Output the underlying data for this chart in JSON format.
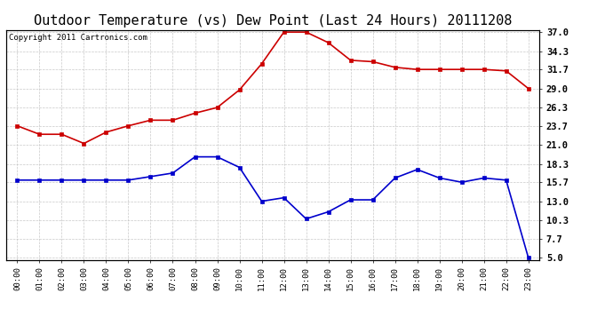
{
  "title": "Outdoor Temperature (vs) Dew Point (Last 24 Hours) 20111208",
  "copyright": "Copyright 2011 Cartronics.com",
  "x_labels": [
    "00:00",
    "01:00",
    "02:00",
    "03:00",
    "04:00",
    "05:00",
    "06:00",
    "07:00",
    "08:00",
    "09:00",
    "10:00",
    "11:00",
    "12:00",
    "13:00",
    "14:00",
    "15:00",
    "16:00",
    "17:00",
    "18:00",
    "19:00",
    "20:00",
    "21:00",
    "22:00",
    "23:00"
  ],
  "temp_red": [
    23.7,
    22.5,
    22.5,
    21.2,
    22.8,
    23.7,
    24.5,
    24.5,
    25.5,
    26.3,
    28.8,
    32.5,
    37.0,
    37.0,
    35.5,
    33.0,
    32.8,
    32.0,
    31.7,
    31.7,
    31.7,
    31.7,
    31.5,
    29.0
  ],
  "dew_blue": [
    16.0,
    16.0,
    16.0,
    16.0,
    16.0,
    16.0,
    16.5,
    17.0,
    19.3,
    19.3,
    17.8,
    13.0,
    13.5,
    10.5,
    11.5,
    13.2,
    13.2,
    16.3,
    17.5,
    16.3,
    15.7,
    16.3,
    16.0,
    5.0
  ],
  "ylim_min": 5.0,
  "ylim_max": 37.0,
  "yticks": [
    5.0,
    7.7,
    10.3,
    13.0,
    15.7,
    18.3,
    21.0,
    23.7,
    26.3,
    29.0,
    31.7,
    34.3,
    37.0
  ],
  "temp_color": "#cc0000",
  "dew_color": "#0000cc",
  "bg_color": "#ffffff",
  "grid_color": "#bbbbbb",
  "title_fontsize": 11,
  "copyright_fontsize": 6.5
}
